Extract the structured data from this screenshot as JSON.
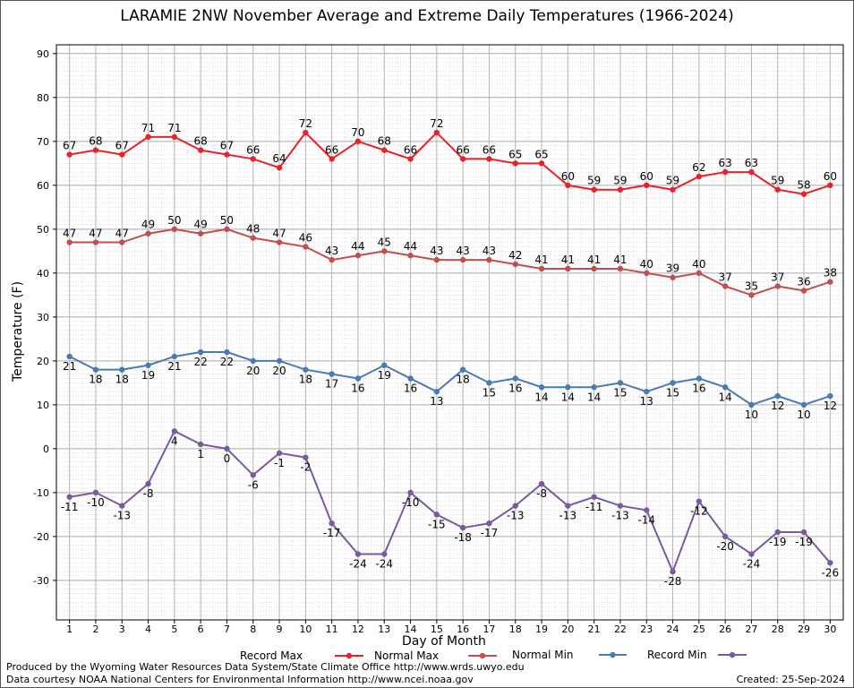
{
  "title": "LARAMIE 2NW November Average and Extreme Daily Temperatures (1966-2024)",
  "footer": {
    "produced_by": "Produced by the Wyoming Water Resources Data System/State Climate Office http://www.wrds.uwyo.edu",
    "courtesy": "Data courtesy NOAA National Centers for Environmental Information http://www.ncei.noaa.gov",
    "created": "Created:  25-Sep-2024"
  },
  "chart_data": {
    "type": "line",
    "title": "LARAMIE 2NW November Average and Extreme Daily Temperatures (1966-2024)",
    "xlabel": "Day of Month",
    "ylabel": "Temperature (F)",
    "x": [
      1,
      2,
      3,
      4,
      5,
      6,
      7,
      8,
      9,
      10,
      11,
      12,
      13,
      14,
      15,
      16,
      17,
      18,
      19,
      20,
      21,
      22,
      23,
      24,
      25,
      26,
      27,
      28,
      29,
      30
    ],
    "xlim": [
      0.5,
      30.5
    ],
    "ylim": [
      -39,
      92
    ],
    "yticks": [
      -30,
      -20,
      -10,
      0,
      10,
      20,
      30,
      40,
      50,
      60,
      70,
      80,
      90
    ],
    "grid": true,
    "legend_position": "bottom",
    "series": [
      {
        "name": "Record Max",
        "color": "#e8222a",
        "label_pos": "above",
        "values": [
          67,
          68,
          67,
          71,
          71,
          68,
          67,
          66,
          64,
          72,
          66,
          70,
          68,
          66,
          72,
          66,
          66,
          65,
          65,
          60,
          59,
          59,
          60,
          59,
          62,
          63,
          63,
          59,
          58,
          60
        ]
      },
      {
        "name": "Normal Max",
        "color": "#c0504d",
        "label_pos": "above",
        "values": [
          47,
          47,
          47,
          49,
          50,
          49,
          50,
          48,
          47,
          46,
          43,
          44,
          45,
          44,
          43,
          43,
          43,
          42,
          41,
          41,
          41,
          41,
          40,
          39,
          40,
          37,
          35,
          37,
          36,
          38
        ]
      },
      {
        "name": "Normal Min",
        "color": "#4a7ab5",
        "label_pos": "below",
        "values": [
          21,
          18,
          18,
          19,
          21,
          22,
          22,
          20,
          20,
          18,
          17,
          16,
          19,
          16,
          13,
          18,
          15,
          16,
          14,
          14,
          14,
          15,
          13,
          15,
          16,
          14,
          10,
          12,
          10,
          12
        ]
      },
      {
        "name": "Record Min",
        "color": "#7a5a9e",
        "label_pos": "below",
        "values": [
          -11,
          -10,
          -13,
          -8,
          4,
          1,
          0,
          -6,
          -1,
          -2,
          -17,
          -24,
          -24,
          -10,
          -15,
          -18,
          -17,
          -13,
          -8,
          -13,
          -11,
          -13,
          -14,
          -28,
          -12,
          -20,
          -24,
          -19,
          -19,
          -26
        ]
      }
    ]
  }
}
